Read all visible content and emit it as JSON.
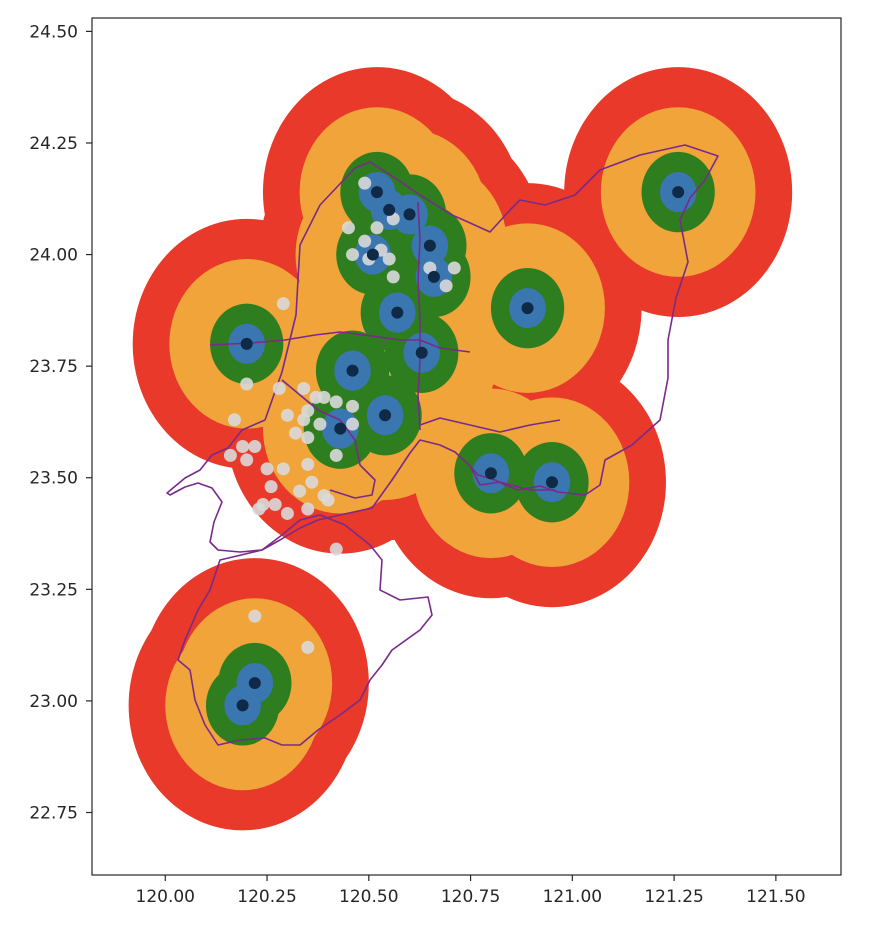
{
  "chart_data": {
    "type": "scatter",
    "title": "",
    "xlabel": "",
    "ylabel": "",
    "xlim": [
      119.82,
      121.66
    ],
    "ylim": [
      22.61,
      24.53
    ],
    "grid": false,
    "x_ticks": [
      120.0,
      120.25,
      120.5,
      120.75,
      121.0,
      121.25,
      121.5
    ],
    "x_tick_labels": [
      "120.00",
      "120.25",
      "120.50",
      "120.75",
      "121.00",
      "121.25",
      "121.50"
    ],
    "y_ticks": [
      22.75,
      23.0,
      23.25,
      23.5,
      23.75,
      24.0,
      24.25,
      24.5
    ],
    "y_tick_labels": [
      "22.75",
      "23.00",
      "23.25",
      "23.50",
      "23.75",
      "24.00",
      "24.25",
      "24.50"
    ],
    "buffer_colors": {
      "outer": "#e8392a",
      "second": "#f0a43a",
      "third": "#2e7d1f",
      "inner": "#3a76b0",
      "center_point": "#0e2a47",
      "boundary": "#7a2a8a",
      "other_point": "#d9d9d9"
    },
    "buffer_radii_deg": [
      0.28,
      0.19,
      0.09,
      0.045
    ],
    "center_points": [
      {
        "x": 120.19,
        "y": 22.99
      },
      {
        "x": 120.22,
        "y": 23.04
      },
      {
        "x": 120.2,
        "y": 23.8
      },
      {
        "x": 120.52,
        "y": 24.14
      },
      {
        "x": 120.55,
        "y": 24.1
      },
      {
        "x": 120.6,
        "y": 24.09
      },
      {
        "x": 120.51,
        "y": 24.0
      },
      {
        "x": 120.65,
        "y": 24.02
      },
      {
        "x": 120.66,
        "y": 23.95
      },
      {
        "x": 120.57,
        "y": 23.87
      },
      {
        "x": 120.63,
        "y": 23.78
      },
      {
        "x": 120.46,
        "y": 23.74
      },
      {
        "x": 120.54,
        "y": 23.64
      },
      {
        "x": 120.43,
        "y": 23.61
      },
      {
        "x": 120.89,
        "y": 23.88
      },
      {
        "x": 120.8,
        "y": 23.51
      },
      {
        "x": 120.95,
        "y": 23.49
      },
      {
        "x": 121.26,
        "y": 24.14
      }
    ],
    "other_points": [
      {
        "x": 120.49,
        "y": 24.16
      },
      {
        "x": 120.45,
        "y": 24.06
      },
      {
        "x": 120.52,
        "y": 24.06
      },
      {
        "x": 120.56,
        "y": 24.08
      },
      {
        "x": 120.49,
        "y": 24.03
      },
      {
        "x": 120.53,
        "y": 24.01
      },
      {
        "x": 120.46,
        "y": 24.0
      },
      {
        "x": 120.5,
        "y": 23.99
      },
      {
        "x": 120.55,
        "y": 23.99
      },
      {
        "x": 120.56,
        "y": 23.95
      },
      {
        "x": 120.65,
        "y": 23.97
      },
      {
        "x": 120.71,
        "y": 23.97
      },
      {
        "x": 120.69,
        "y": 23.93
      },
      {
        "x": 120.29,
        "y": 23.89
      },
      {
        "x": 120.2,
        "y": 23.71
      },
      {
        "x": 120.28,
        "y": 23.7
      },
      {
        "x": 120.34,
        "y": 23.7
      },
      {
        "x": 120.37,
        "y": 23.68
      },
      {
        "x": 120.39,
        "y": 23.68
      },
      {
        "x": 120.42,
        "y": 23.67
      },
      {
        "x": 120.46,
        "y": 23.66
      },
      {
        "x": 120.35,
        "y": 23.65
      },
      {
        "x": 120.3,
        "y": 23.64
      },
      {
        "x": 120.17,
        "y": 23.63
      },
      {
        "x": 120.34,
        "y": 23.63
      },
      {
        "x": 120.38,
        "y": 23.62
      },
      {
        "x": 120.46,
        "y": 23.62
      },
      {
        "x": 120.32,
        "y": 23.6
      },
      {
        "x": 120.35,
        "y": 23.59
      },
      {
        "x": 120.19,
        "y": 23.57
      },
      {
        "x": 120.22,
        "y": 23.57
      },
      {
        "x": 120.16,
        "y": 23.55
      },
      {
        "x": 120.2,
        "y": 23.54
      },
      {
        "x": 120.42,
        "y": 23.55
      },
      {
        "x": 120.35,
        "y": 23.53
      },
      {
        "x": 120.29,
        "y": 23.52
      },
      {
        "x": 120.25,
        "y": 23.52
      },
      {
        "x": 120.36,
        "y": 23.49
      },
      {
        "x": 120.33,
        "y": 23.47
      },
      {
        "x": 120.39,
        "y": 23.46
      },
      {
        "x": 120.4,
        "y": 23.45
      },
      {
        "x": 120.26,
        "y": 23.48
      },
      {
        "x": 120.24,
        "y": 23.44
      },
      {
        "x": 120.23,
        "y": 23.43
      },
      {
        "x": 120.35,
        "y": 23.43
      },
      {
        "x": 120.3,
        "y": 23.42
      },
      {
        "x": 120.27,
        "y": 23.44
      },
      {
        "x": 120.42,
        "y": 23.34
      },
      {
        "x": 120.22,
        "y": 23.19
      },
      {
        "x": 120.35,
        "y": 23.12
      }
    ]
  }
}
